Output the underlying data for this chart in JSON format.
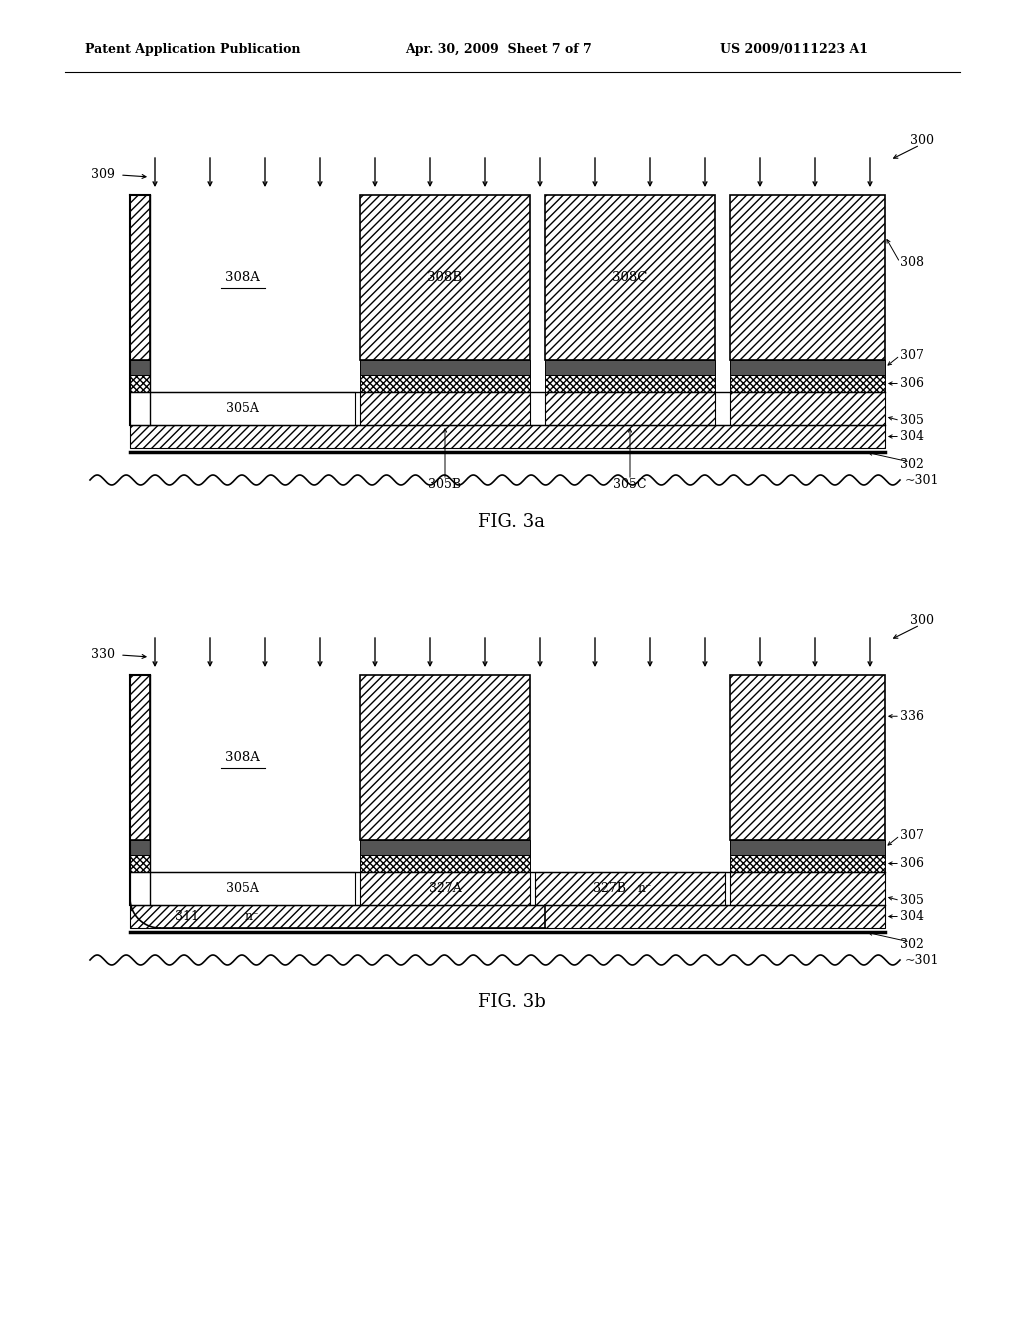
{
  "header_left": "Patent Application Publication",
  "header_mid": "Apr. 30, 2009  Sheet 7 of 7",
  "header_right": "US 2009/0111223 A1",
  "fig_a_label": "FIG. 3a",
  "fig_b_label": "FIG. 3b",
  "background_color": "#ffffff",
  "fig3a": {
    "arrow_label": "309",
    "diagram_label": "300",
    "wavy_label": "301",
    "label_302": "302",
    "label_304": "304",
    "label_305": "305",
    "label_305A": "305A",
    "label_305B": "305B",
    "label_305C": "305C",
    "label_306": "306",
    "label_307": "307",
    "label_308": "308",
    "label_308A": "308A",
    "label_308B": "308B",
    "label_308C": "308C"
  },
  "fig3b": {
    "arrow_label": "330",
    "diagram_label": "300",
    "wavy_label": "301",
    "label_302": "302",
    "label_304": "304",
    "label_305": "305",
    "label_305A": "305A",
    "label_306": "306",
    "label_307": "307",
    "label_308A": "308A",
    "label_311": "311",
    "label_n_minus": "n⁻",
    "label_327A": "327A",
    "label_327B": "327B",
    "label_327B_n": "n⁻",
    "label_336": "336"
  }
}
